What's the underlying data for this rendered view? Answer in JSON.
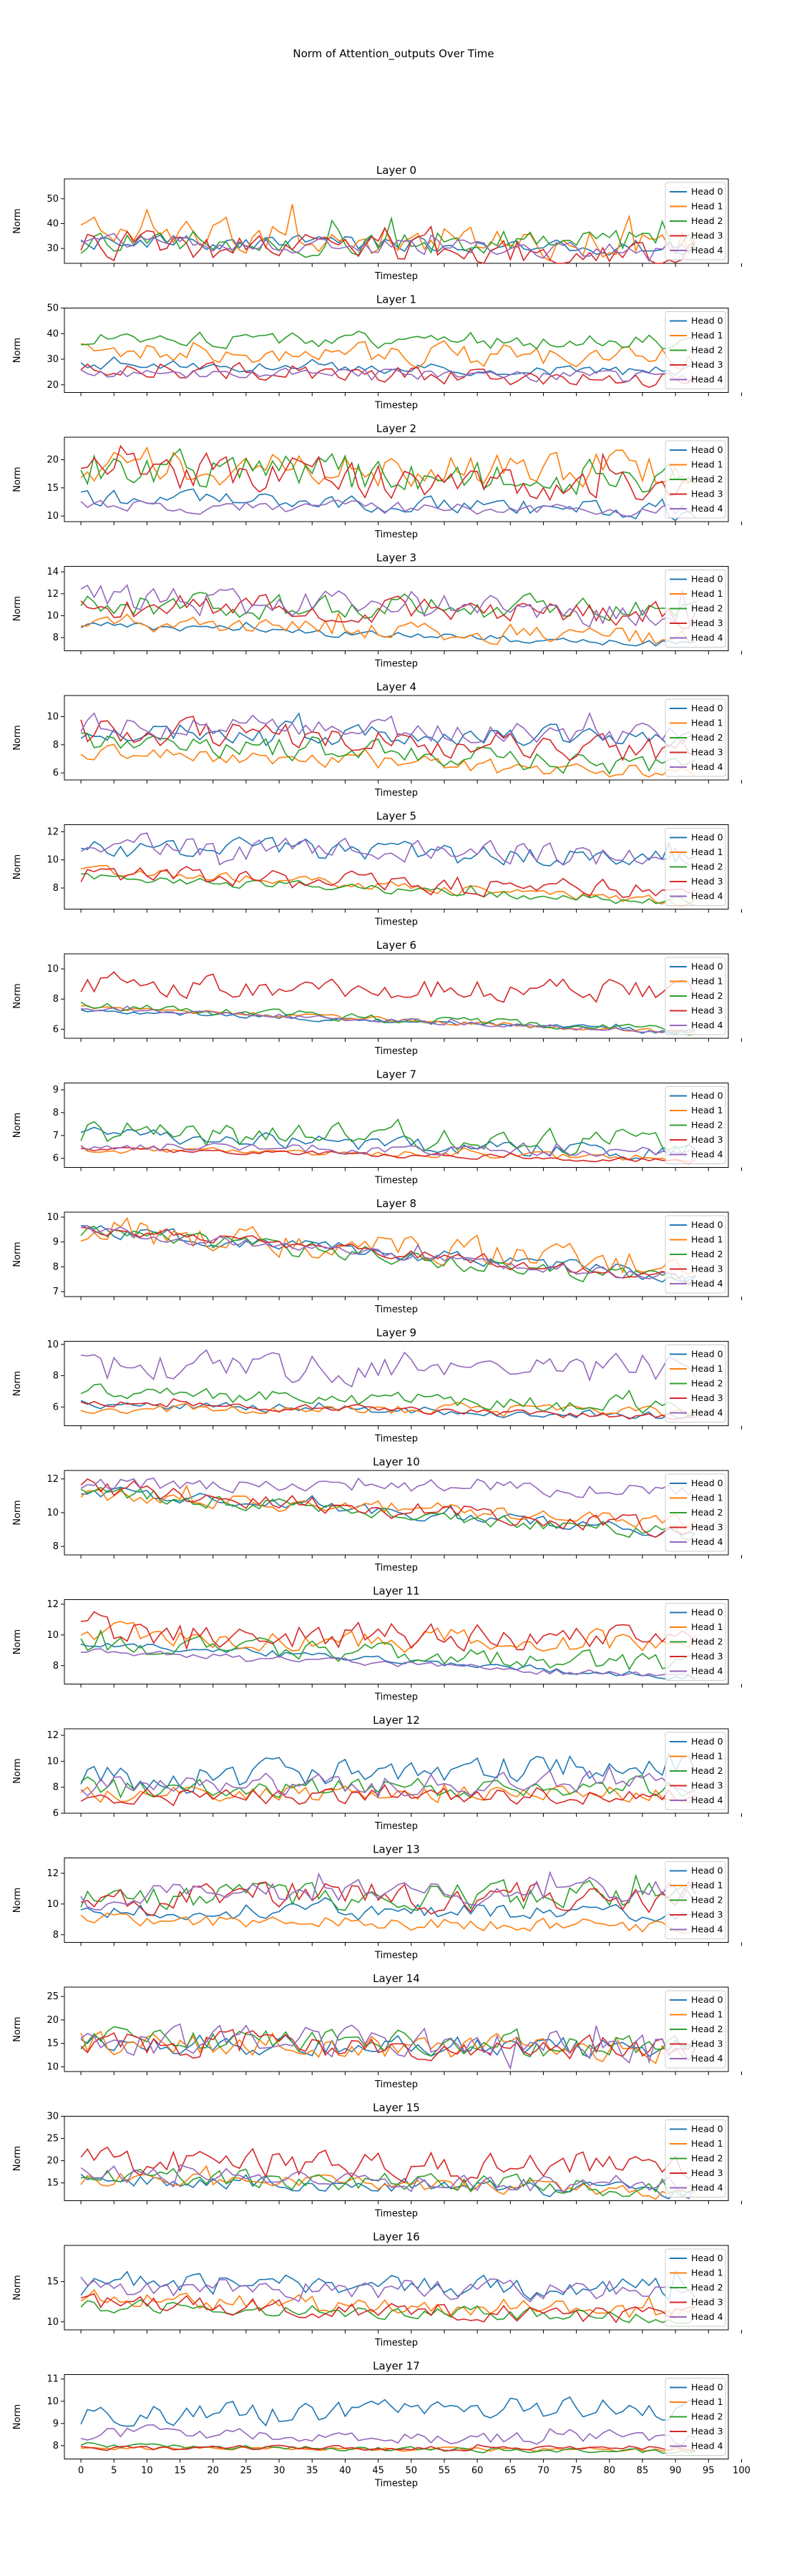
{
  "suptitle": "Norm of Attention_outputs Over Time",
  "xlabel": "Timestep",
  "ylabel": "Norm",
  "x_ticks": [
    0,
    5,
    10,
    15,
    20,
    25,
    30,
    35,
    40,
    45,
    50,
    55,
    60,
    65,
    70,
    75,
    80,
    85,
    90,
    95,
    100
  ],
  "head_colors": [
    "#1f77b4",
    "#ff7f0e",
    "#2ca02c",
    "#d62728",
    "#9467bd"
  ],
  "legend_labels": [
    "Head 0",
    "Head 1",
    "Head 2",
    "Head 3",
    "Head 4"
  ],
  "chart_data": {
    "type": "line",
    "x_range": [
      0,
      93
    ],
    "xlim": [
      -2.5,
      98
    ],
    "grid": false,
    "legend_placement": "right",
    "panels": [
      {
        "title": "Layer 0",
        "ylim": [
          24,
          58
        ],
        "yticks": [
          30,
          40,
          50
        ],
        "series": [
          {
            "name": "Head 0",
            "base": 33,
            "amp": 3,
            "seed": 1,
            "trend": -3
          },
          {
            "name": "Head 1",
            "base": 36,
            "amp": 6,
            "seed": 2,
            "trend": -4
          },
          {
            "name": "Head 2",
            "base": 33,
            "amp": 5,
            "seed": 3,
            "trend": 0
          },
          {
            "name": "Head 3",
            "base": 32,
            "amp": 5,
            "seed": 4,
            "trend": -5
          },
          {
            "name": "Head 4",
            "base": 33,
            "amp": 3,
            "seed": 5,
            "trend": -4
          }
        ]
      },
      {
        "title": "Layer 1",
        "ylim": [
          17,
          50
        ],
        "yticks": [
          20,
          30,
          40,
          50
        ],
        "series": [
          {
            "name": "Head 0",
            "base": 28,
            "amp": 2,
            "seed": 6,
            "trend": -3
          },
          {
            "name": "Head 1",
            "base": 33,
            "amp": 4,
            "seed": 7,
            "trend": -2
          },
          {
            "name": "Head 2",
            "base": 38,
            "amp": 3,
            "seed": 8,
            "trend": -1
          },
          {
            "name": "Head 3",
            "base": 26,
            "amp": 3,
            "seed": 9,
            "trend": -4
          },
          {
            "name": "Head 4",
            "base": 25,
            "amp": 2,
            "seed": 10,
            "trend": -2
          }
        ]
      },
      {
        "title": "Layer 2",
        "ylim": [
          9,
          24
        ],
        "yticks": [
          10,
          15,
          20
        ],
        "series": [
          {
            "name": "Head 0",
            "base": 13,
            "amp": 1.5,
            "seed": 11,
            "trend": -2
          },
          {
            "name": "Head 1",
            "base": 19,
            "amp": 3,
            "seed": 12,
            "trend": -1
          },
          {
            "name": "Head 2",
            "base": 19,
            "amp": 3,
            "seed": 13,
            "trend": -3
          },
          {
            "name": "Head 3",
            "base": 18,
            "amp": 3,
            "seed": 14,
            "trend": -3
          },
          {
            "name": "Head 4",
            "base": 12,
            "amp": 1,
            "seed": 15,
            "trend": -1
          }
        ]
      },
      {
        "title": "Layer 3",
        "ylim": [
          6.8,
          14.5
        ],
        "yticks": [
          8,
          10,
          12,
          14
        ],
        "series": [
          {
            "name": "Head 0",
            "base": 9.2,
            "amp": 0.3,
            "seed": 16,
            "trend": -1.8
          },
          {
            "name": "Head 1",
            "base": 9.5,
            "amp": 0.8,
            "seed": 17,
            "trend": -1.5
          },
          {
            "name": "Head 2",
            "base": 11,
            "amp": 1,
            "seed": 18,
            "trend": -0.5
          },
          {
            "name": "Head 3",
            "base": 11,
            "amp": 1,
            "seed": 19,
            "trend": -1
          },
          {
            "name": "Head 4",
            "base": 11.5,
            "amp": 1.2,
            "seed": 20,
            "trend": -1.5
          }
        ]
      },
      {
        "title": "Layer 4",
        "ylim": [
          5.5,
          11.5
        ],
        "yticks": [
          6,
          8,
          10
        ],
        "series": [
          {
            "name": "Head 0",
            "base": 9,
            "amp": 0.7,
            "seed": 21,
            "trend": -0.5
          },
          {
            "name": "Head 1",
            "base": 7.5,
            "amp": 0.5,
            "seed": 22,
            "trend": -1.5
          },
          {
            "name": "Head 2",
            "base": 8.5,
            "amp": 0.8,
            "seed": 23,
            "trend": -2
          },
          {
            "name": "Head 3",
            "base": 9,
            "amp": 0.9,
            "seed": 24,
            "trend": -1.5
          },
          {
            "name": "Head 4",
            "base": 9.5,
            "amp": 0.8,
            "seed": 25,
            "trend": -1
          }
        ]
      },
      {
        "title": "Layer 5",
        "ylim": [
          6.5,
          12.5
        ],
        "yticks": [
          8,
          10,
          12
        ],
        "series": [
          {
            "name": "Head 0",
            "base": 11,
            "amp": 0.7,
            "seed": 26,
            "trend": -1
          },
          {
            "name": "Head 1",
            "base": 9.3,
            "amp": 0.3,
            "seed": 27,
            "trend": -2.3
          },
          {
            "name": "Head 2",
            "base": 8.8,
            "amp": 0.3,
            "seed": 28,
            "trend": -1.8
          },
          {
            "name": "Head 3",
            "base": 9,
            "amp": 0.6,
            "seed": 29,
            "trend": -1.3
          },
          {
            "name": "Head 4",
            "base": 11,
            "amp": 0.8,
            "seed": 30,
            "trend": -0.8
          }
        ]
      },
      {
        "title": "Layer 6",
        "ylim": [
          5.4,
          11
        ],
        "yticks": [
          6,
          8,
          10
        ],
        "series": [
          {
            "name": "Head 0",
            "base": 7.3,
            "amp": 0.15,
            "seed": 31,
            "trend": -1.5
          },
          {
            "name": "Head 1",
            "base": 7.5,
            "amp": 0.15,
            "seed": 32,
            "trend": -1.7
          },
          {
            "name": "Head 2",
            "base": 7.6,
            "amp": 0.25,
            "seed": 33,
            "trend": -1.8
          },
          {
            "name": "Head 3",
            "base": 9,
            "amp": 0.7,
            "seed": 34,
            "trend": -0.5
          },
          {
            "name": "Head 4",
            "base": 7.4,
            "amp": 0.15,
            "seed": 35,
            "trend": -1.6
          }
        ]
      },
      {
        "title": "Layer 7",
        "ylim": [
          5.6,
          9.3
        ],
        "yticks": [
          6,
          7,
          8,
          9
        ],
        "series": [
          {
            "name": "Head 0",
            "base": 7,
            "amp": 0.3,
            "seed": 36,
            "trend": -0.8
          },
          {
            "name": "Head 1",
            "base": 6.4,
            "amp": 0.15,
            "seed": 37,
            "trend": -0.4
          },
          {
            "name": "Head 2",
            "base": 7.1,
            "amp": 0.5,
            "seed": 38,
            "trend": -0.4
          },
          {
            "name": "Head 3",
            "base": 6.4,
            "amp": 0.1,
            "seed": 39,
            "trend": -0.5
          },
          {
            "name": "Head 4",
            "base": 6.5,
            "amp": 0.2,
            "seed": 40,
            "trend": -0.2
          }
        ]
      },
      {
        "title": "Layer 8",
        "ylim": [
          6.8,
          10.2
        ],
        "yticks": [
          7,
          8,
          9,
          10
        ],
        "series": [
          {
            "name": "Head 0",
            "base": 9.5,
            "amp": 0.25,
            "seed": 41,
            "trend": -1.9
          },
          {
            "name": "Head 1",
            "base": 9.5,
            "amp": 0.5,
            "seed": 42,
            "trend": -1.5
          },
          {
            "name": "Head 2",
            "base": 9.4,
            "amp": 0.3,
            "seed": 43,
            "trend": -2
          },
          {
            "name": "Head 3",
            "base": 9.6,
            "amp": 0.2,
            "seed": 44,
            "trend": -2.1
          },
          {
            "name": "Head 4",
            "base": 9.5,
            "amp": 0.2,
            "seed": 45,
            "trend": -2
          }
        ]
      },
      {
        "title": "Layer 9",
        "ylim": [
          4.8,
          10.2
        ],
        "yticks": [
          6,
          8,
          10
        ],
        "series": [
          {
            "name": "Head 0",
            "base": 6.2,
            "amp": 0.25,
            "seed": 46,
            "trend": -0.8
          },
          {
            "name": "Head 1",
            "base": 6,
            "amp": 0.3,
            "seed": 47,
            "trend": -0.3
          },
          {
            "name": "Head 2",
            "base": 7,
            "amp": 0.5,
            "seed": 48,
            "trend": -1
          },
          {
            "name": "Head 3",
            "base": 6.3,
            "amp": 0.2,
            "seed": 49,
            "trend": -1
          },
          {
            "name": "Head 4",
            "base": 8.5,
            "amp": 0.9,
            "seed": 50,
            "trend": 0
          }
        ]
      },
      {
        "title": "Layer 10",
        "ylim": [
          7.5,
          12.5
        ],
        "yticks": [
          8,
          10,
          12
        ],
        "series": [
          {
            "name": "Head 0",
            "base": 11.3,
            "amp": 0.3,
            "seed": 51,
            "trend": -2.5
          },
          {
            "name": "Head 1",
            "base": 11,
            "amp": 0.4,
            "seed": 52,
            "trend": -1.5
          },
          {
            "name": "Head 2",
            "base": 11.3,
            "amp": 0.4,
            "seed": 53,
            "trend": -2.6
          },
          {
            "name": "Head 3",
            "base": 11.3,
            "amp": 0.5,
            "seed": 54,
            "trend": -2.2
          },
          {
            "name": "Head 4",
            "base": 11.8,
            "amp": 0.4,
            "seed": 55,
            "trend": -0.5
          }
        ]
      },
      {
        "title": "Layer 11",
        "ylim": [
          6.8,
          12.3
        ],
        "yticks": [
          8,
          10,
          12
        ],
        "series": [
          {
            "name": "Head 0",
            "base": 9.5,
            "amp": 0.2,
            "seed": 56,
            "trend": -2.3
          },
          {
            "name": "Head 1",
            "base": 10,
            "amp": 0.7,
            "seed": 57,
            "trend": -0.5
          },
          {
            "name": "Head 2",
            "base": 9.5,
            "amp": 0.6,
            "seed": 58,
            "trend": -1.5
          },
          {
            "name": "Head 3",
            "base": 10.2,
            "amp": 0.8,
            "seed": 59,
            "trend": -0.5
          },
          {
            "name": "Head 4",
            "base": 9,
            "amp": 0.2,
            "seed": 60,
            "trend": -1.8
          }
        ]
      },
      {
        "title": "Layer 12",
        "ylim": [
          6,
          12.5
        ],
        "yticks": [
          6,
          8,
          10,
          12
        ],
        "series": [
          {
            "name": "Head 0",
            "base": 8.5,
            "amp": 1,
            "seed": 61,
            "trend": 1.5
          },
          {
            "name": "Head 1",
            "base": 7.5,
            "amp": 0.6,
            "seed": 62,
            "trend": 0
          },
          {
            "name": "Head 2",
            "base": 8,
            "amp": 0.7,
            "seed": 63,
            "trend": 0
          },
          {
            "name": "Head 3",
            "base": 7.3,
            "amp": 0.6,
            "seed": 64,
            "trend": 0
          },
          {
            "name": "Head 4",
            "base": 8,
            "amp": 0.8,
            "seed": 65,
            "trend": 0.5
          }
        ]
      },
      {
        "title": "Layer 13",
        "ylim": [
          7.5,
          13
        ],
        "yticks": [
          8,
          10,
          12
        ],
        "series": [
          {
            "name": "Head 0",
            "base": 9.5,
            "amp": 0.5,
            "seed": 66,
            "trend": 0
          },
          {
            "name": "Head 1",
            "base": 9,
            "amp": 0.4,
            "seed": 67,
            "trend": -0.5
          },
          {
            "name": "Head 2",
            "base": 10.5,
            "amp": 0.8,
            "seed": 68,
            "trend": 0
          },
          {
            "name": "Head 3",
            "base": 10.5,
            "amp": 0.9,
            "seed": 69,
            "trend": 0
          },
          {
            "name": "Head 4",
            "base": 10.5,
            "amp": 0.7,
            "seed": 70,
            "trend": 0.5
          }
        ]
      },
      {
        "title": "Layer 14",
        "ylim": [
          9,
          27
        ],
        "yticks": [
          10,
          15,
          20,
          25
        ],
        "series": [
          {
            "name": "Head 0",
            "base": 15,
            "amp": 2,
            "seed": 71,
            "trend": -1
          },
          {
            "name": "Head 1",
            "base": 15,
            "amp": 2.5,
            "seed": 72,
            "trend": -1
          },
          {
            "name": "Head 2",
            "base": 15.5,
            "amp": 2.5,
            "seed": 73,
            "trend": -1
          },
          {
            "name": "Head 3",
            "base": 15,
            "amp": 2.5,
            "seed": 74,
            "trend": -1
          },
          {
            "name": "Head 4",
            "base": 15.5,
            "amp": 3,
            "seed": 75,
            "trend": -1
          }
        ]
      },
      {
        "title": "Layer 15",
        "ylim": [
          11,
          30
        ],
        "yticks": [
          15,
          20,
          25,
          30
        ],
        "series": [
          {
            "name": "Head 0",
            "base": 16,
            "amp": 1.5,
            "seed": 76,
            "trend": -3
          },
          {
            "name": "Head 1",
            "base": 16,
            "amp": 1.5,
            "seed": 77,
            "trend": -3
          },
          {
            "name": "Head 2",
            "base": 16.5,
            "amp": 2,
            "seed": 78,
            "trend": -3
          },
          {
            "name": "Head 3",
            "base": 20,
            "amp": 3,
            "seed": 79,
            "trend": -2
          },
          {
            "name": "Head 4",
            "base": 17,
            "amp": 2,
            "seed": 80,
            "trend": -3
          }
        ]
      },
      {
        "title": "Layer 16",
        "ylim": [
          9,
          19.5
        ],
        "yticks": [
          10,
          15
        ],
        "series": [
          {
            "name": "Head 0",
            "base": 15,
            "amp": 1.2,
            "seed": 81,
            "trend": -1
          },
          {
            "name": "Head 1",
            "base": 13,
            "amp": 1,
            "seed": 82,
            "trend": -2
          },
          {
            "name": "Head 2",
            "base": 12,
            "amp": 0.8,
            "seed": 83,
            "trend": -1.5
          },
          {
            "name": "Head 3",
            "base": 12.5,
            "amp": 1,
            "seed": 84,
            "trend": -2
          },
          {
            "name": "Head 4",
            "base": 14.5,
            "amp": 1.2,
            "seed": 85,
            "trend": -1
          }
        ]
      },
      {
        "title": "Layer 17",
        "ylim": [
          7.4,
          11.2
        ],
        "yticks": [
          8,
          9,
          10,
          11
        ],
        "series": [
          {
            "name": "Head 0",
            "base": 9.3,
            "amp": 0.5,
            "seed": 86,
            "trend": 0.5
          },
          {
            "name": "Head 1",
            "base": 7.9,
            "amp": 0.08,
            "seed": 87,
            "trend": -0.1
          },
          {
            "name": "Head 2",
            "base": 8,
            "amp": 0.1,
            "seed": 88,
            "trend": -0.3
          },
          {
            "name": "Head 3",
            "base": 7.9,
            "amp": 0.1,
            "seed": 89,
            "trend": 0
          },
          {
            "name": "Head 4",
            "base": 8.6,
            "amp": 0.3,
            "seed": 90,
            "trend": -0.3
          }
        ]
      }
    ]
  }
}
